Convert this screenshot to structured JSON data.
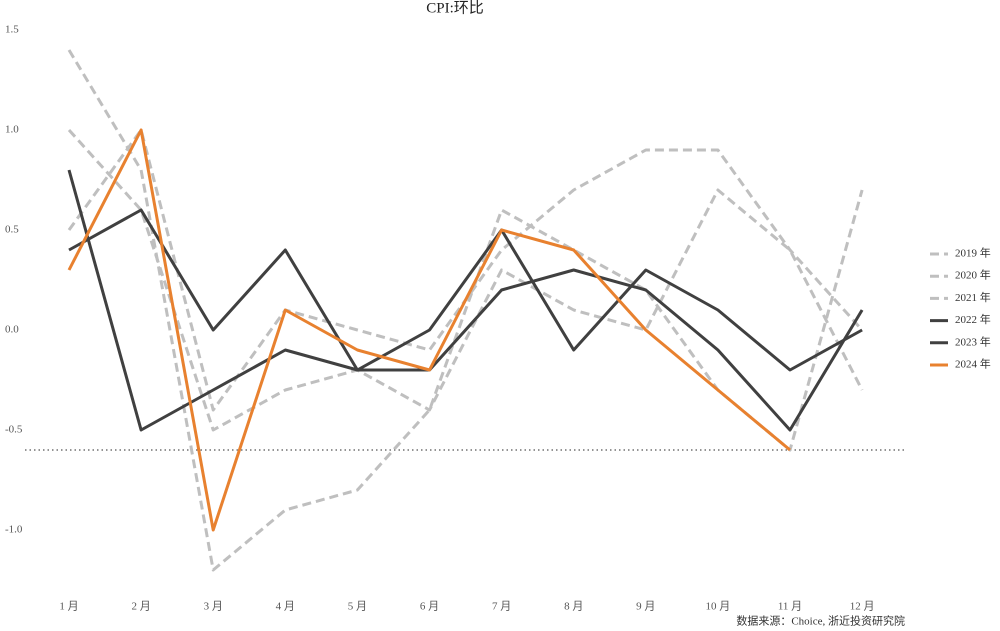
{
  "chart_data": {
    "type": "line",
    "title": "CPI:环比",
    "categories": [
      "1 月",
      "2 月",
      "3 月",
      "4 月",
      "5 月",
      "6 月",
      "7 月",
      "8 月",
      "9 月",
      "10 月",
      "11 月",
      "12 月"
    ],
    "series": [
      {
        "name": "2019 年",
        "color": "#bfbfbf",
        "dashed": true,
        "values": [
          0.5,
          1.0,
          -0.4,
          0.1,
          0.0,
          -0.1,
          0.4,
          0.7,
          0.9,
          0.9,
          0.4,
          0.0
        ]
      },
      {
        "name": "2020 年",
        "color": "#bfbfbf",
        "dashed": true,
        "values": [
          1.4,
          0.8,
          -1.2,
          -0.9,
          -0.8,
          -0.4,
          0.6,
          0.4,
          0.2,
          -0.3,
          -0.6,
          0.7
        ]
      },
      {
        "name": "2021 年",
        "color": "#bfbfbf",
        "dashed": true,
        "values": [
          1.0,
          0.6,
          -0.5,
          -0.3,
          -0.2,
          -0.4,
          0.3,
          0.1,
          0.0,
          0.7,
          0.4,
          -0.3
        ]
      },
      {
        "name": "2022 年",
        "color": "#404040",
        "dashed": false,
        "values": [
          0.4,
          0.6,
          0.0,
          0.4,
          -0.2,
          0.0,
          0.5,
          -0.1,
          0.3,
          0.1,
          -0.2,
          0.0
        ]
      },
      {
        "name": "2023 年",
        "color": "#404040",
        "dashed": false,
        "values": [
          0.8,
          -0.5,
          -0.3,
          -0.1,
          -0.2,
          -0.2,
          0.2,
          0.3,
          0.2,
          -0.1,
          -0.5,
          0.1
        ]
      },
      {
        "name": "2024 年",
        "color": "#e8812f",
        "dashed": false,
        "values": [
          0.3,
          1.0,
          -1.0,
          0.1,
          -0.1,
          -0.2,
          0.5,
          0.4,
          0.0,
          -0.3,
          -0.6,
          null
        ]
      }
    ],
    "ylim": [
      -1.3,
      1.5
    ],
    "yticks": [
      {
        "value": 1.5,
        "label": "1.5"
      },
      {
        "value": 1.0,
        "label": "1.0"
      },
      {
        "value": 0.5,
        "label": "0.5"
      },
      {
        "value": 0.0,
        "label": "0.0"
      },
      {
        "value": -0.5,
        "label": "-0.5"
      },
      {
        "value": -1.0,
        "label": "-1.0"
      }
    ],
    "reference_line": -0.6,
    "source": "数据来源：Choice, 浙近投资研究院"
  }
}
